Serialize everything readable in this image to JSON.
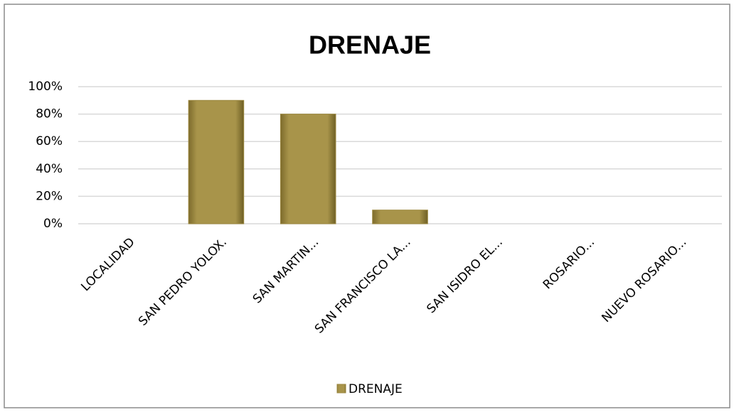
{
  "chart_data": {
    "type": "bar",
    "title": "DRENAJE",
    "categories": [
      "LOCALIDAD",
      "SAN PEDRO YOLOX.",
      "SAN MARTIN...",
      "SAN FRANCISCO LA...",
      "SAN ISIDRO EL...",
      "ROSARIO...",
      "NUEVO ROSARIO..."
    ],
    "series": [
      {
        "name": "DRENAJE",
        "color": "#9c8840",
        "values": [
          0,
          90,
          80,
          10,
          0,
          0,
          0
        ]
      }
    ],
    "ylim": [
      0,
      100
    ],
    "yticks": [
      {
        "value": 0,
        "label": "0%"
      },
      {
        "value": 20,
        "label": "20%"
      },
      {
        "value": 40,
        "label": "40%"
      },
      {
        "value": 60,
        "label": "60%"
      },
      {
        "value": 80,
        "label": "80%"
      },
      {
        "value": 100,
        "label": "100%"
      }
    ],
    "grid": true,
    "legend": "bottom"
  }
}
